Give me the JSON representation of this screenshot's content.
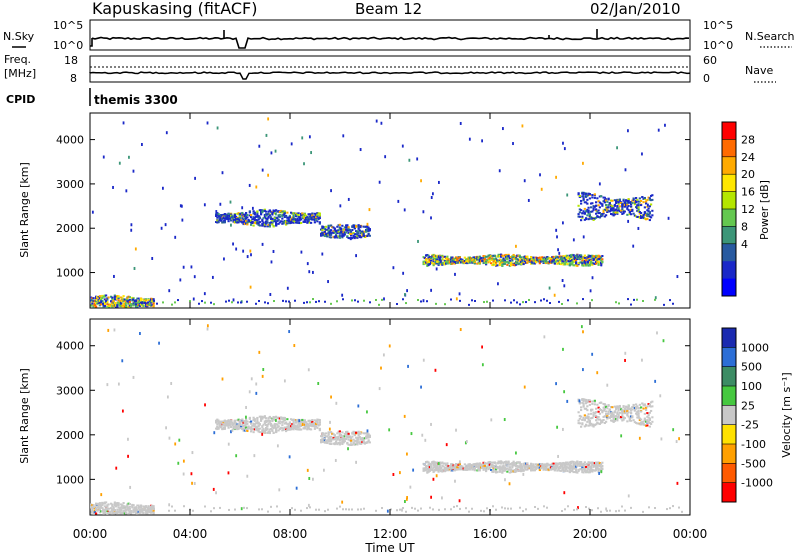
{
  "header": {
    "station": "Kapuskasing (fitACF)",
    "beam": "Beam 12",
    "date": "02/Jan/2010"
  },
  "nsky_panel": {
    "left_label": "N.Sky",
    "right_label": "N.Search",
    "left_ticks": [
      "10^5",
      "10^0"
    ],
    "right_ticks": [
      "10^5",
      "10^0"
    ]
  },
  "freq_panel": {
    "left_label_line1": "Freq.",
    "left_label_line2": "[MHz]",
    "right_label": "Nave",
    "left_ticks": [
      "18",
      "8"
    ],
    "right_ticks": [
      "60",
      "0"
    ]
  },
  "cpid": {
    "label": "CPID",
    "program": "themis 3300"
  },
  "chart_data": [
    {
      "type": "heatmap",
      "name": "Power",
      "xlabel": "",
      "ylabel": "Slant Range [km]",
      "ylim": [
        200,
        4600
      ],
      "xlim_hours": [
        0,
        24
      ],
      "y_ticks": [
        "4000",
        "3000",
        "2000",
        "1000"
      ],
      "y_tick_values": [
        4000,
        3000,
        2000,
        1000
      ],
      "colorbar": {
        "label": "Power [dB]",
        "labels": [
          "28",
          "24",
          "20",
          "16",
          "12",
          "8",
          "4"
        ],
        "colors": [
          "#ff0000",
          "#ff6a00",
          "#ffaa00",
          "#ffe600",
          "#b4e600",
          "#64c850",
          "#3c9678",
          "#285aa0",
          "#1a28c8",
          "#0000ff"
        ]
      },
      "echo_regions": [
        {
          "t0": 5.0,
          "t1": 9.2,
          "r_center": 2250,
          "r_width": 300,
          "level": "mixed"
        },
        {
          "t0": 9.2,
          "t1": 11.2,
          "r_center": 1950,
          "r_width": 250,
          "level": "mixed"
        },
        {
          "t0": 13.3,
          "t1": 20.5,
          "r_center": 1300,
          "r_width": 200,
          "level": "high"
        },
        {
          "t0": 19.5,
          "t1": 22.5,
          "r_center": 2500,
          "r_width": 500,
          "level": "mixed"
        },
        {
          "t0": 0.0,
          "t1": 2.5,
          "r_center": 350,
          "r_width": 250,
          "level": "high"
        }
      ]
    },
    {
      "type": "heatmap",
      "name": "Velocity",
      "xlabel": "Time UT",
      "ylabel": "Slant Range [km]",
      "ylim": [
        200,
        4600
      ],
      "xlim_hours": [
        0,
        24
      ],
      "x_ticks": [
        "00:00",
        "04:00",
        "08:00",
        "12:00",
        "16:00",
        "20:00",
        "00:00"
      ],
      "y_ticks": [
        "4000",
        "3000",
        "2000",
        "1000"
      ],
      "y_tick_values": [
        4000,
        3000,
        2000,
        1000
      ],
      "colorbar": {
        "label": "Velocity [m s⁻¹]",
        "labels": [
          "1000",
          "500",
          "100",
          "25",
          "-25",
          "-100",
          "-500",
          "-1000"
        ],
        "colors": [
          "#1a2ab0",
          "#2c6ed6",
          "#3c8c64",
          "#46c840",
          "#c8c8c8",
          "#ffe100",
          "#ffa000",
          "#ff5a00",
          "#ff0000"
        ]
      }
    }
  ]
}
